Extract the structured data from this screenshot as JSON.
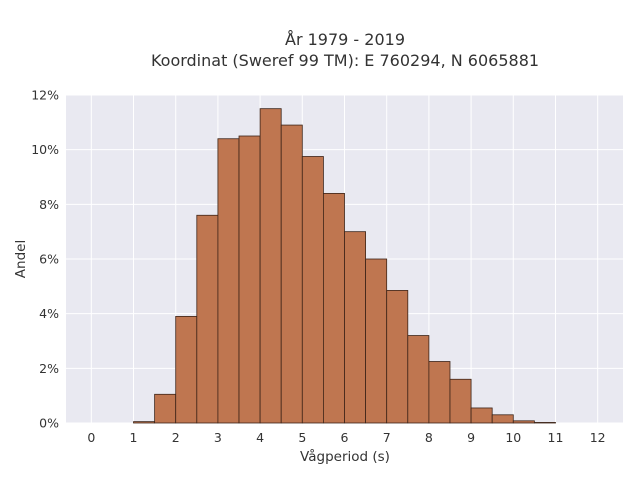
{
  "chart_data": {
    "type": "bar",
    "title": "År 1979 - 2019",
    "subtitle": "Koordinat (Sweref 99 TM): E 760294, N 6065881",
    "xlabel": "Vågperiod (s)",
    "ylabel": "Andel",
    "x_ticks": [
      "0",
      "1",
      "2",
      "3",
      "4",
      "5",
      "6",
      "7",
      "8",
      "9",
      "10",
      "11",
      "12"
    ],
    "y_ticks": [
      "0%",
      "2%",
      "4%",
      "6%",
      "8%",
      "10%",
      "12%"
    ],
    "xlim": [
      -0.6,
      12.6
    ],
    "ylim": [
      0,
      12
    ],
    "bin_width": 0.5,
    "bins": [
      {
        "x0": 1.0,
        "value": 0.05
      },
      {
        "x0": 1.5,
        "value": 1.05
      },
      {
        "x0": 2.0,
        "value": 3.9
      },
      {
        "x0": 2.5,
        "value": 7.6
      },
      {
        "x0": 3.0,
        "value": 10.4
      },
      {
        "x0": 3.5,
        "value": 10.5
      },
      {
        "x0": 4.0,
        "value": 11.5
      },
      {
        "x0": 4.5,
        "value": 10.9
      },
      {
        "x0": 5.0,
        "value": 9.75
      },
      {
        "x0": 5.5,
        "value": 8.4
      },
      {
        "x0": 6.0,
        "value": 7.0
      },
      {
        "x0": 6.5,
        "value": 6.0
      },
      {
        "x0": 7.0,
        "value": 4.85
      },
      {
        "x0": 7.5,
        "value": 3.2
      },
      {
        "x0": 8.0,
        "value": 2.25
      },
      {
        "x0": 8.5,
        "value": 1.6
      },
      {
        "x0": 9.0,
        "value": 0.55
      },
      {
        "x0": 9.5,
        "value": 0.3
      },
      {
        "x0": 10.0,
        "value": 0.08
      },
      {
        "x0": 10.5,
        "value": 0.02
      }
    ],
    "grid": true,
    "colors": {
      "bar_fill": "#bf7650",
      "bar_edge": "#3d2418",
      "plot_bg": "#e9e9f1",
      "grid": "#ffffff"
    }
  }
}
